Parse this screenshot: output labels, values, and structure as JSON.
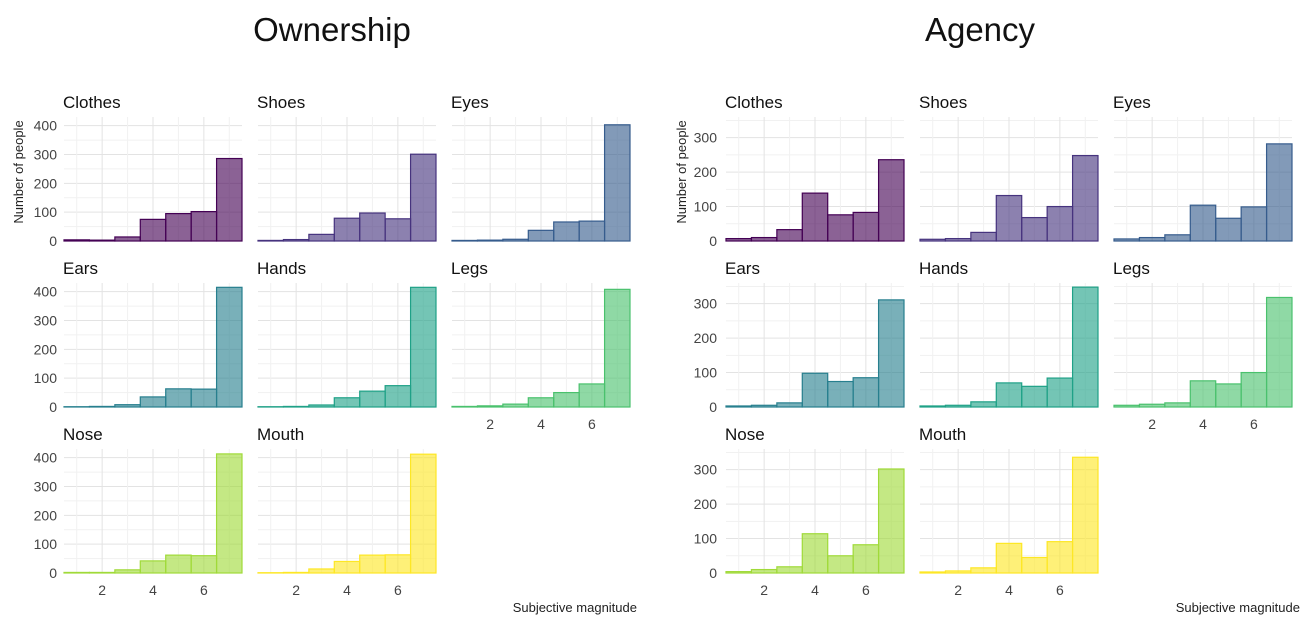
{
  "chart_data": [
    {
      "type": "bar",
      "title": "Ownership",
      "xlabel": "Subjective magnitude",
      "ylabel": "Number of people",
      "x": [
        1,
        2,
        3,
        4,
        5,
        6,
        7
      ],
      "xticks": [
        "2",
        "4",
        "6"
      ],
      "ylim": [
        0,
        430
      ],
      "yticks": [
        "0",
        "100",
        "200",
        "300",
        "400"
      ],
      "panels": [
        {
          "name": "Clothes",
          "color": "#440154",
          "values": [
            4,
            3,
            14,
            75,
            95,
            102,
            286
          ]
        },
        {
          "name": "Shoes",
          "color": "#46337E",
          "values": [
            2,
            5,
            23,
            79,
            97,
            77,
            301
          ]
        },
        {
          "name": "Eyes",
          "color": "#365C8D",
          "values": [
            2,
            3,
            6,
            37,
            66,
            69,
            403
          ]
        },
        {
          "name": "Ears",
          "color": "#277F8E",
          "values": [
            1,
            2,
            8,
            35,
            63,
            62,
            415
          ]
        },
        {
          "name": "Hands",
          "color": "#1FA187",
          "values": [
            1,
            2,
            7,
            32,
            55,
            74,
            415
          ]
        },
        {
          "name": "Legs",
          "color": "#4AC16D",
          "values": [
            2,
            4,
            10,
            32,
            50,
            80,
            408
          ]
        },
        {
          "name": "Nose",
          "color": "#A0DA39",
          "values": [
            2,
            2,
            11,
            42,
            62,
            60,
            413
          ]
        },
        {
          "name": "Mouth",
          "color": "#FDE725",
          "values": [
            1,
            2,
            14,
            40,
            62,
            63,
            412
          ]
        }
      ]
    },
    {
      "type": "bar",
      "title": "Agency",
      "xlabel": "Subjective magnitude",
      "ylabel": "Number of people",
      "x": [
        1,
        2,
        3,
        4,
        5,
        6,
        7
      ],
      "xticks": [
        "2",
        "4",
        "6"
      ],
      "ylim": [
        0,
        360
      ],
      "yticks": [
        "0",
        "100",
        "200",
        "300"
      ],
      "panels": [
        {
          "name": "Clothes",
          "color": "#440154",
          "values": [
            7,
            10,
            33,
            139,
            76,
            83,
            236
          ]
        },
        {
          "name": "Shoes",
          "color": "#46337E",
          "values": [
            5,
            7,
            25,
            132,
            68,
            100,
            248
          ]
        },
        {
          "name": "Eyes",
          "color": "#365C8D",
          "values": [
            6,
            10,
            18,
            104,
            66,
            99,
            282
          ]
        },
        {
          "name": "Ears",
          "color": "#277F8E",
          "values": [
            3,
            5,
            12,
            98,
            74,
            85,
            311
          ]
        },
        {
          "name": "Hands",
          "color": "#1FA187",
          "values": [
            3,
            5,
            15,
            70,
            60,
            84,
            348
          ]
        },
        {
          "name": "Legs",
          "color": "#4AC16D",
          "values": [
            5,
            8,
            12,
            76,
            67,
            100,
            318
          ]
        },
        {
          "name": "Nose",
          "color": "#A0DA39",
          "values": [
            4,
            10,
            18,
            114,
            50,
            82,
            302
          ]
        },
        {
          "name": "Mouth",
          "color": "#FDE725",
          "values": [
            3,
            6,
            15,
            86,
            45,
            91,
            336
          ]
        }
      ]
    }
  ]
}
